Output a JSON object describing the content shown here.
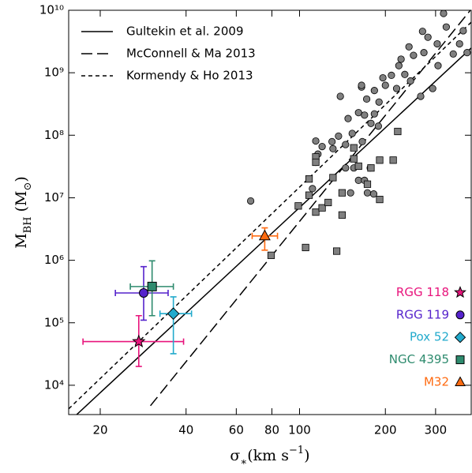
{
  "chart_data": {
    "type": "scatter",
    "x_label": [
      {
        "text": "σ"
      },
      {
        "text": "∗",
        "script": "sub"
      },
      {
        "text": "(km s"
      },
      {
        "text": "−1",
        "script": "super"
      },
      {
        "text": ")"
      }
    ],
    "y_label": [
      {
        "text": "M"
      },
      {
        "text": "BH",
        "script": "sub"
      },
      {
        "text": " (M"
      },
      {
        "text": "⊙",
        "script": "sub"
      },
      {
        "text": ")"
      }
    ],
    "x_log": true,
    "y_log": true,
    "xlim": [
      15.5,
      400
    ],
    "ylim": [
      3400,
      10000000000
    ],
    "xticks": [
      20,
      40,
      60,
      80,
      100,
      200,
      300
    ],
    "yticks": [
      {
        "value": 10000,
        "label": "10⁴"
      },
      {
        "value": 100000,
        "label": "10⁵"
      },
      {
        "value": 1000000,
        "label": "10⁶"
      },
      {
        "value": 10000000,
        "label": "10⁷"
      },
      {
        "value": 100000000,
        "label": "10⁸"
      },
      {
        "value": 1000000000,
        "label": "10⁹"
      },
      {
        "value": 10000000000,
        "label": "10¹⁰"
      }
    ],
    "relations_legend": "upper left",
    "relations": [
      {
        "name": "Gultekin et al. 2009",
        "style": "solid",
        "color": "#000000",
        "x": [
          15.5,
          400
        ],
        "values": [
          2580,
          2490000000
        ]
      },
      {
        "name": "McConnell & Ma 2013",
        "style": "dashed",
        "color": "#000000",
        "x": [
          30,
          400
        ],
        "values": [
          4710,
          10400000000
        ]
      },
      {
        "name": "Kormendy & Ho 2013",
        "style": "dotted",
        "color": "#000000",
        "x": [
          15.5,
          400
        ],
        "values": [
          4200,
          6430000000
        ]
      }
    ],
    "points": [
      {
        "marker": "circle",
        "color": "#808080",
        "x": [
          320,
          270,
          282,
          304,
          375,
          327,
          273,
          242,
          227,
          234,
          245,
          266,
          293,
          346,
          387,
          210,
          196,
          200,
          219,
          183,
          172,
          190,
          165,
          183,
          178,
          161,
          169,
          148,
          166,
          189,
          153,
          137,
          130,
          131,
          145,
          114,
          116,
          114,
          120,
          165,
          145,
          155,
          161,
          169,
          173,
          182,
          177,
          151,
          111,
          364,
          223,
          251,
          67.4,
          139,
          306
        ],
        "values": [
          8900000000,
          4600000000,
          3700000000,
          2900000000,
          4700000000,
          5400000000,
          2100000000,
          2600000000,
          1650000000,
          940000000,
          740000000,
          420000000,
          560000000,
          2000000000,
          2100000000,
          910000000,
          830000000,
          630000000,
          560000000,
          520000000,
          380000000,
          340000000,
          590000000,
          220000000,
          155000000,
          230000000,
          210000000,
          185000000,
          79000000,
          140000000,
          107000000,
          97000000,
          79000000,
          61000000,
          71000000,
          81000000,
          50000000,
          37000000,
          66000000,
          630000000,
          30000000,
          30000000,
          19000000,
          19000000,
          12000000,
          11500000,
          30000000,
          12000000,
          14000000,
          2900000000,
          1300000000,
          1900000000,
          8900000,
          420000000,
          1300000000
        ]
      },
      {
        "marker": "square",
        "color": "#808080",
        "x": [
          114,
          114,
          108,
          108,
          99,
          114,
          120,
          126,
          131,
          141,
          141,
          155,
          155,
          161,
          178,
          191,
          191,
          213,
          221,
          79.5,
          105,
          135,
          173
        ],
        "values": [
          45000000,
          37000000,
          20000000,
          11000000,
          7400000,
          5900000,
          6900000,
          8400000,
          21000000,
          5300000,
          12000000,
          63000000,
          42000000,
          32000000,
          30000000,
          9400000,
          40000000,
          40000000,
          115000000,
          1200000,
          1600000,
          1400000,
          16500000
        ]
      }
    ],
    "objects": [
      {
        "name": "RGG 118",
        "color": "#e8147c",
        "marker": "star",
        "x": 27.3,
        "value": 50000,
        "x_err": [
          9.9,
          11.9
        ],
        "y_err": [
          30000,
          80000
        ]
      },
      {
        "name": "RGG 119",
        "color": "#5522cc",
        "marker": "circle",
        "x": 28.4,
        "value": 300000,
        "x_err": [
          5.8,
          6.2
        ],
        "y_err": [
          190000,
          490000
        ]
      },
      {
        "name": "Pox 52",
        "color": "#22aacc",
        "marker": "diamond",
        "x": 36.1,
        "value": 140000,
        "x_err": [
          3.7,
          5.7
        ],
        "y_err": [
          108000,
          120000
        ]
      },
      {
        "name": "NGC 4395",
        "color": "#2e8b6e",
        "marker": "square",
        "x": 30.4,
        "value": 380000,
        "x_err": [
          4.9,
          5.7
        ],
        "y_err": [
          250000,
          600000
        ]
      },
      {
        "name": "M32",
        "color": "#ff6a10",
        "marker": "triangle",
        "x": 75.5,
        "value": 2450000,
        "x_err": [
          7.3,
          8.2
        ],
        "y_err": [
          1000000,
          850000
        ]
      }
    ],
    "objects_legend": "lower right"
  }
}
